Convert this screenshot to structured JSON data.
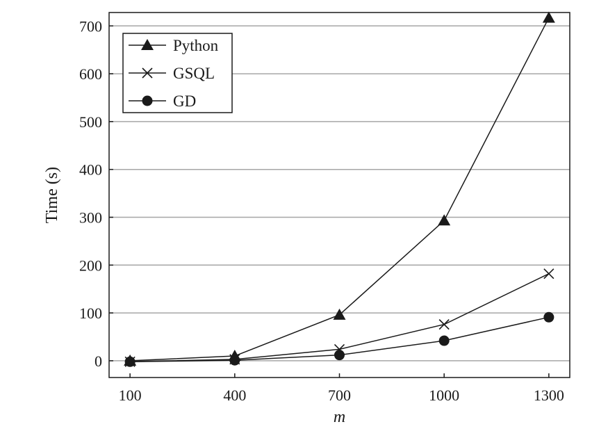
{
  "chart_data": {
    "type": "line",
    "xlabel": "m",
    "ylabel": "Time (s)",
    "x": [
      100,
      400,
      700,
      1000,
      1300
    ],
    "x_ticks": [
      "100",
      "400",
      "700",
      "1000",
      "1300"
    ],
    "y_ticks": [
      "0",
      "100",
      "200",
      "300",
      "400",
      "500",
      "600",
      "700"
    ],
    "xlim": [
      40,
      1360
    ],
    "ylim": [
      -35,
      728
    ],
    "grid": "horizontal",
    "legend_position": "top-left",
    "series": [
      {
        "name": "Python",
        "marker": "triangle",
        "values": [
          0,
          10,
          96,
          293,
          717
        ]
      },
      {
        "name": "GSQL",
        "marker": "cross",
        "values": [
          -2,
          3,
          24,
          76,
          182
        ]
      },
      {
        "name": "GD",
        "marker": "circle",
        "values": [
          -2,
          1,
          12,
          42,
          91
        ]
      }
    ],
    "colors": {
      "line": "#1a1a1a",
      "grid": "#a6a6a6",
      "frame": "#1a1a1a"
    }
  }
}
